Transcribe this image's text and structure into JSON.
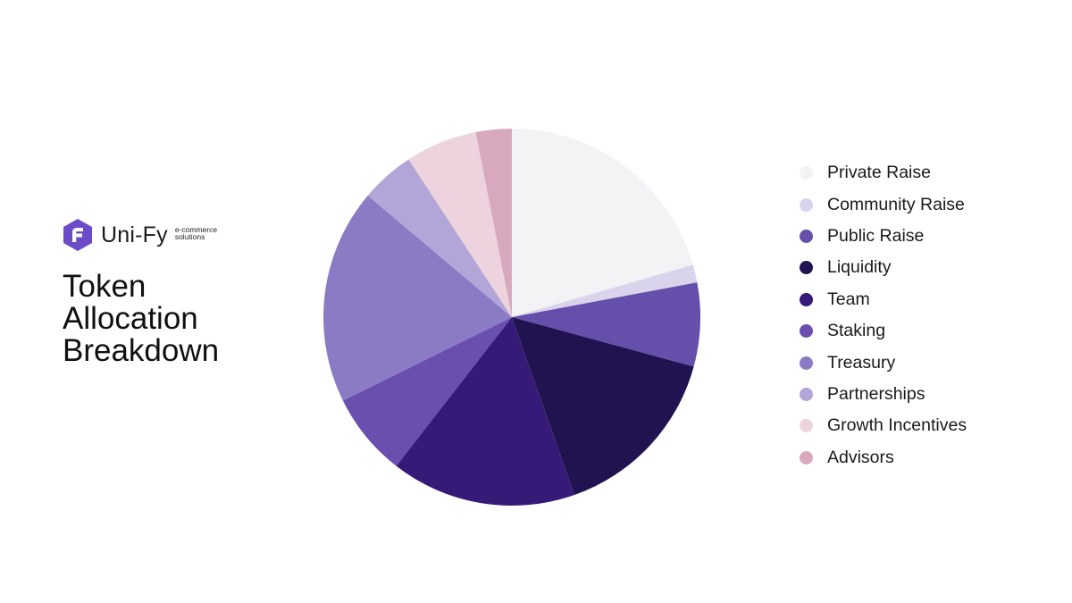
{
  "brand": {
    "name": "Uni-Fy",
    "tagline_line1": "e-commerce",
    "tagline_line2": "solutions",
    "logo_color": "#6c4bc7",
    "logo_icon": "hexagon-f-logo-icon"
  },
  "title": {
    "line1": "Token",
    "line2": "Allocation",
    "line3": "Breakdown"
  },
  "chart_data": {
    "type": "pie",
    "title": "Token Allocation Breakdown",
    "start_angle_deg": 0,
    "direction": "clockwise",
    "legend_position": "right",
    "slices": [
      {
        "name": "Private Raise",
        "value": 20,
        "color": "#f3f2f4"
      },
      {
        "name": "Community Raise",
        "value": 1.5,
        "color": "#dad3ec"
      },
      {
        "name": "Public Raise",
        "value": 7,
        "color": "#654fab"
      },
      {
        "name": "Liquidity",
        "value": 15,
        "color": "#21134f"
      },
      {
        "name": "Team",
        "value": 15.5,
        "color": "#361a78"
      },
      {
        "name": "Staking",
        "value": 7,
        "color": "#6a4faf"
      },
      {
        "name": "Treasury",
        "value": 18,
        "color": "#8b7bc4"
      },
      {
        "name": "Partnerships",
        "value": 4.5,
        "color": "#b1a6d7"
      },
      {
        "name": "Growth Incentives",
        "value": 6,
        "color": "#ecd3dd"
      },
      {
        "name": "Advisors",
        "value": 3,
        "color": "#d8a8bf"
      }
    ]
  }
}
